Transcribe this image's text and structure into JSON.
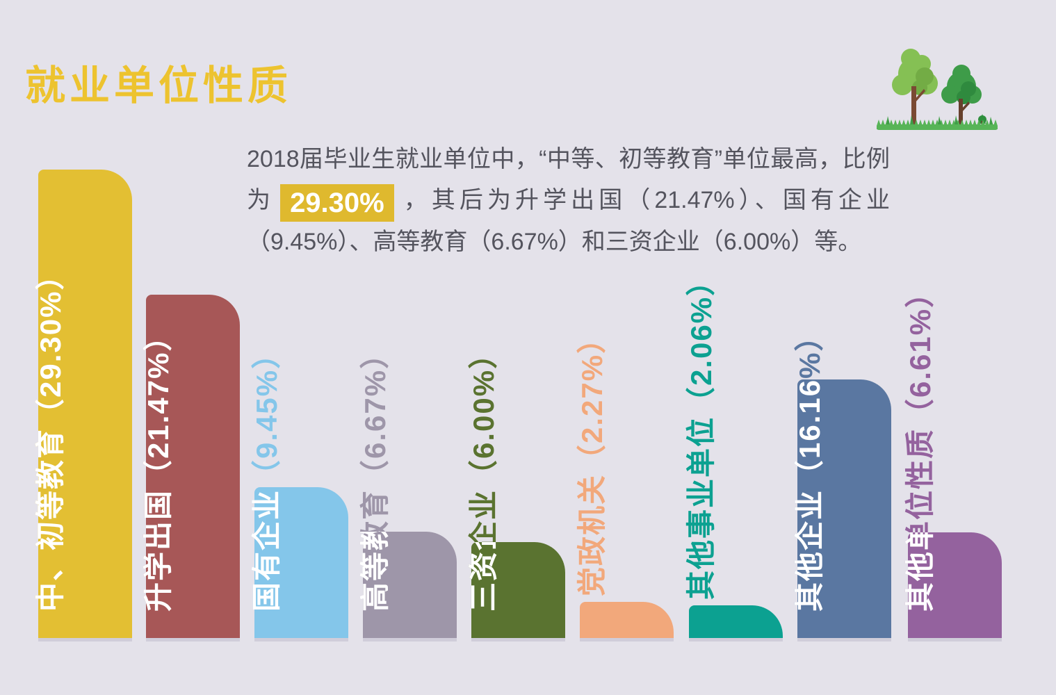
{
  "page": {
    "background": "#E4E2EA"
  },
  "title": {
    "text": "就业单位性质",
    "color": "#EDC32F"
  },
  "paragraph": {
    "before_highlight": "2018届毕业生就业单位中，“中等、初等教育”单位最高，比例为",
    "highlight": "29.30%",
    "after_highlight": "，其后为升学出国（21.47%）、国有企业（9.45%）、高等教育（6.67%）和三资企业（6.00%）等。",
    "text_color": "#54545E",
    "highlight_bg": "#DFB92E",
    "highlight_text_color": "#FFFFFF"
  },
  "decoration": {
    "trees_illustration": "two green paper-cut trees with small bush on grass strip"
  },
  "chart_data": {
    "type": "bar",
    "title": "就业单位性质",
    "unit": "%",
    "categories": [
      "中、初等教育",
      "升学出国",
      "国有企业",
      "高等教育",
      "三资企业",
      "党政机关",
      "其他事业单位",
      "其他企业",
      "其他单位性质"
    ],
    "values": [
      29.3,
      21.47,
      9.45,
      6.67,
      6.0,
      2.27,
      2.06,
      16.16,
      6.61
    ],
    "labels": [
      "中、初等教育（29.30%）",
      "升学出国（21.47%）",
      "国有企业（9.45%）",
      "高等教育（6.67%）",
      "三资企业（6.00%）",
      "党政机关（2.27%）",
      "其他事业单位（2.06%）",
      "其他企业（16.16%）",
      "其他单位性质（6.61%）"
    ],
    "colors": [
      "#E3BF33",
      "#A75757",
      "#84C6EA",
      "#9E96A9",
      "#5A7330",
      "#F2A87B",
      "#0CA191",
      "#5A77A1",
      "#94629E"
    ],
    "label_text_inside_bar_color": "#FFFFFF",
    "orientation": "vertical-bars-with-rotated-labels",
    "ylim": [
      0,
      30
    ],
    "grid": false,
    "legend": false
  }
}
